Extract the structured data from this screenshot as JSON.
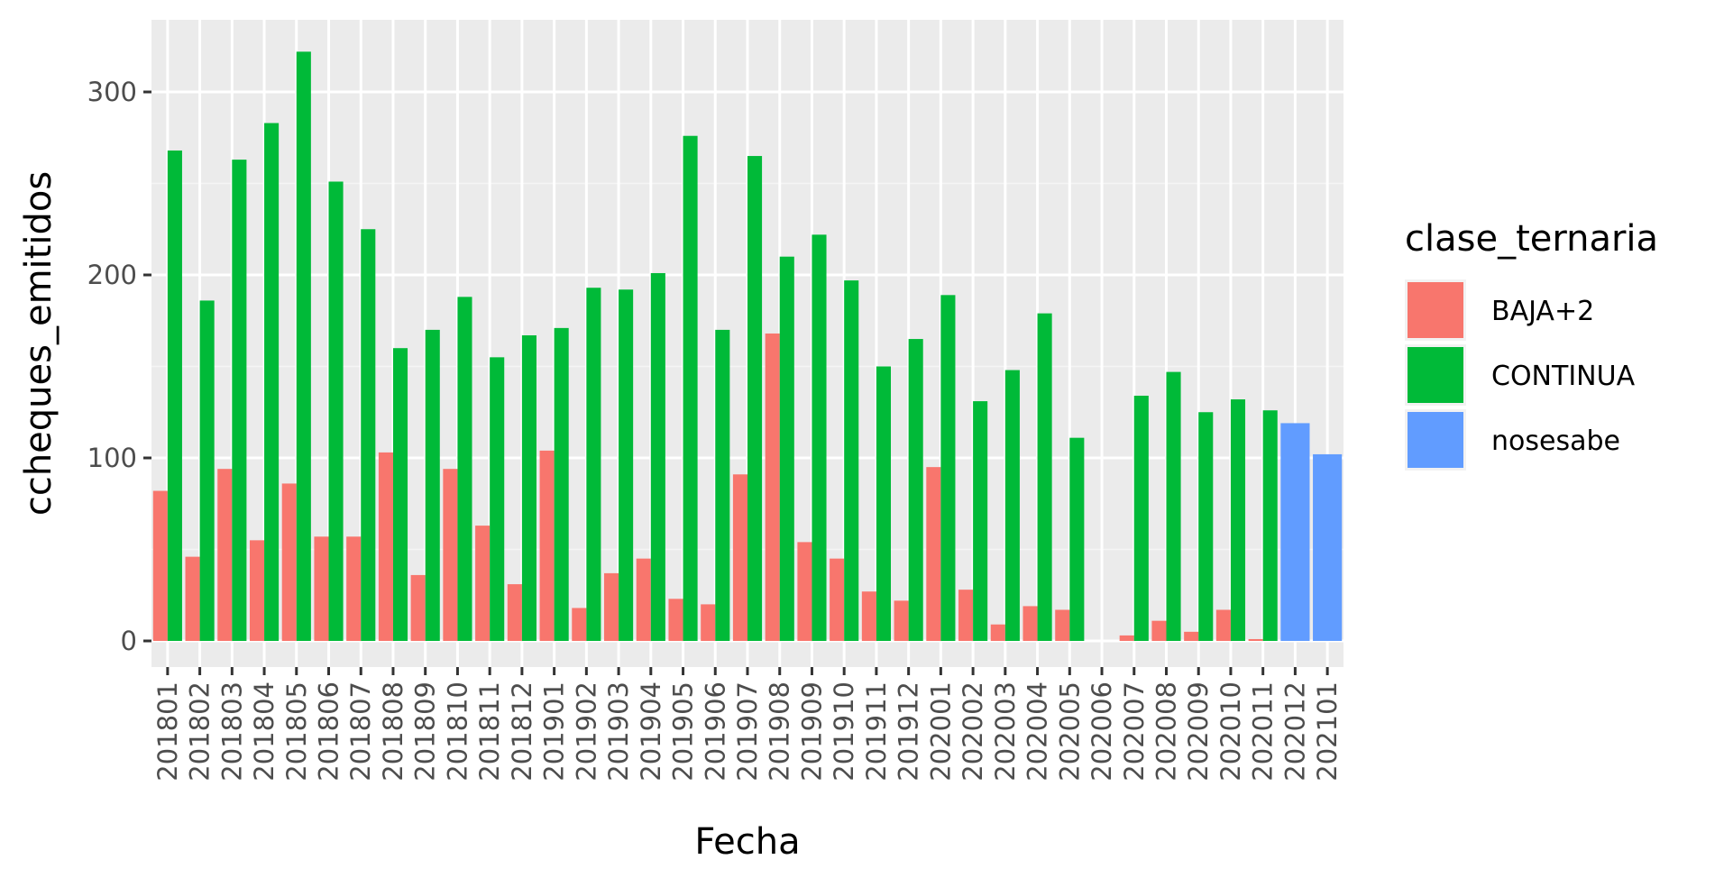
{
  "chart_data": {
    "type": "bar",
    "title": "",
    "xlabel": "Fecha",
    "ylabel": "ccheques_emitidos",
    "ylim": [
      0,
      340
    ],
    "y_ticks": [
      0,
      100,
      200,
      300
    ],
    "y_tick_labels": [
      "0",
      "100",
      "200",
      "300"
    ],
    "grid": true,
    "legend_position": "right",
    "legend_title": "clase_ternaria",
    "categories": [
      "201801",
      "201802",
      "201803",
      "201804",
      "201805",
      "201806",
      "201807",
      "201808",
      "201809",
      "201810",
      "201811",
      "201812",
      "201901",
      "201902",
      "201903",
      "201904",
      "201905",
      "201906",
      "201907",
      "201908",
      "201909",
      "201910",
      "201911",
      "201912",
      "202001",
      "202002",
      "202003",
      "202004",
      "202005",
      "202006",
      "202007",
      "202008",
      "202009",
      "202010",
      "202011",
      "202012",
      "202101"
    ],
    "series": [
      {
        "name": "BAJA+2",
        "color": "#F8766D",
        "values": [
          82,
          46,
          94,
          55,
          86,
          57,
          57,
          103,
          36,
          94,
          63,
          31,
          104,
          18,
          37,
          45,
          23,
          20,
          91,
          168,
          54,
          45,
          27,
          22,
          95,
          28,
          9,
          19,
          17,
          0,
          3,
          11,
          5,
          17,
          1,
          null,
          null
        ]
      },
      {
        "name": "CONTINUA",
        "color": "#00BA38",
        "values": [
          268,
          186,
          263,
          283,
          322,
          251,
          225,
          160,
          170,
          188,
          155,
          167,
          171,
          193,
          192,
          201,
          276,
          170,
          265,
          210,
          222,
          197,
          150,
          165,
          189,
          131,
          148,
          179,
          111,
          null,
          134,
          147,
          125,
          132,
          126,
          null,
          null
        ]
      },
      {
        "name": "nosesabe",
        "color": "#619CFF",
        "values": [
          null,
          null,
          null,
          null,
          null,
          null,
          null,
          null,
          null,
          null,
          null,
          null,
          null,
          null,
          null,
          null,
          null,
          null,
          null,
          null,
          null,
          null,
          null,
          null,
          null,
          null,
          null,
          null,
          null,
          null,
          null,
          null,
          null,
          null,
          null,
          119,
          102
        ]
      }
    ]
  }
}
